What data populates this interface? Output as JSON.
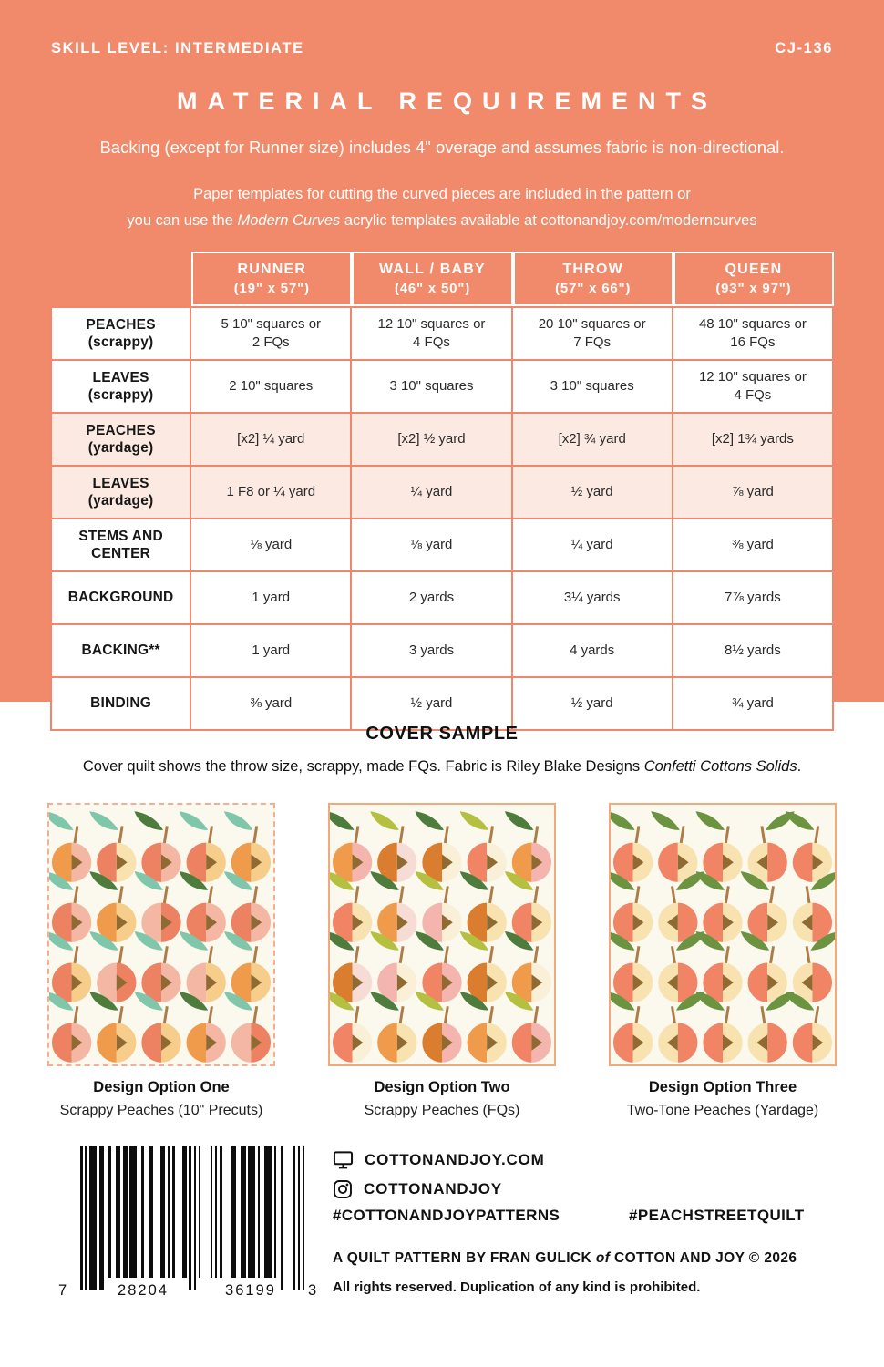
{
  "colors": {
    "accent": "#F18A6B",
    "tborder": "#F0876B",
    "shaded": "#FBE9E2",
    "panelBg": "#FBF8EE"
  },
  "header": {
    "skill_level": "SKILL LEVEL: INTERMEDIATE",
    "pattern_number": "CJ-136",
    "title": "MATERIAL REQUIREMENTS",
    "note1": "Backing (except for Runner size) includes 4\" overage and assumes fabric is non-directional.",
    "note2_line1": "Paper templates for cutting the curved pieces are included in the pattern or",
    "note2_pre": "you can use the ",
    "note2_italic": "Modern Curves",
    "note2_post": " acrylic templates available at cottonandjoy.com/moderncurves"
  },
  "table": {
    "columns": [
      {
        "name": "RUNNER",
        "dims": "(19\" x 57\")"
      },
      {
        "name": "WALL / BABY",
        "dims": "(46\" x 50\")"
      },
      {
        "name": "THROW",
        "dims": "(57\" x 66\")"
      },
      {
        "name": "QUEEN",
        "dims": "(93\" x 97\")"
      }
    ],
    "rows": [
      {
        "label": "PEACHES",
        "sub": "(scrappy)",
        "shaded": false,
        "values": [
          "5 10\" squares or\n2 FQs",
          "12 10\" squares or\n4 FQs",
          "20 10\" squares or\n7 FQs",
          "48 10\" squares or\n16 FQs"
        ]
      },
      {
        "label": "LEAVES",
        "sub": "(scrappy)",
        "shaded": false,
        "values": [
          "2 10\" squares",
          "3 10\" squares",
          "3 10\" squares",
          "12 10\" squares or\n4 FQs"
        ]
      },
      {
        "label": "PEACHES",
        "sub": "(yardage)",
        "shaded": true,
        "values": [
          "[x2] ¼ yard",
          "[x2] ½ yard",
          "[x2] ¾ yard",
          "[x2] 1¾ yards"
        ]
      },
      {
        "label": "LEAVES",
        "sub": "(yardage)",
        "shaded": true,
        "values": [
          "1 F8 or ¼ yard",
          "¼ yard",
          "½ yard",
          "⅞ yard"
        ]
      },
      {
        "label": "STEMS AND CENTER",
        "sub": "",
        "shaded": false,
        "values": [
          "⅛ yard",
          "⅛ yard",
          "¼ yard",
          "⅜ yard"
        ]
      },
      {
        "label": "BACKGROUND",
        "sub": "",
        "shaded": false,
        "values": [
          "1 yard",
          "2 yards",
          "3¼ yards",
          "7⅞ yards"
        ]
      },
      {
        "label": "BACKING**",
        "sub": "",
        "shaded": false,
        "values": [
          "1 yard",
          "3 yards",
          "4 yards",
          "8½ yards"
        ]
      },
      {
        "label": "BINDING",
        "sub": "",
        "shaded": false,
        "values": [
          "⅜ yard",
          "½ yard",
          "½ yard",
          "¾ yard"
        ]
      }
    ]
  },
  "cover_sample": {
    "title": "COVER SAMPLE",
    "desc_pre": "Cover quilt shows the throw size, scrappy, made FQs. Fabric is Riley Blake Designs ",
    "desc_italic": "Confetti Cottons Solids",
    "desc_post": "."
  },
  "palette": {
    "or": "#F09B4B",
    "do": "#DB7D2F",
    "sa": "#F08465",
    "rg": "#ED8262",
    "pk": "#F4B7A3",
    "pp": "#F3B5AE",
    "lp": "#F7DCD6",
    "yl": "#F6CD8B",
    "cr": "#F8E3B0",
    "pc": "#FAF0D8",
    "tl": "#7FC6AB",
    "dg": "#4E7C3C",
    "yg": "#B5BF40",
    "gr": "#6B9340",
    "stem": "#AC7D46",
    "seed": "#8F6B33"
  },
  "design_options": [
    {
      "title": "Design Option One",
      "subtitle": "Scrappy Peaches (10\" Precuts)",
      "peaches": [
        [
          "or",
          "pk",
          "tl"
        ],
        [
          "rg",
          "cr",
          "tl"
        ],
        [
          "rg",
          "pk",
          "dg"
        ],
        [
          "rg",
          "yl",
          "tl"
        ],
        [
          "or",
          "yl",
          "tl"
        ],
        [
          "rg",
          "pk",
          "tl"
        ],
        [
          "or",
          "yl",
          "dg"
        ],
        [
          "pk",
          "rg",
          "tl"
        ],
        [
          "rg",
          "pk",
          "dg"
        ],
        [
          "rg",
          "pk",
          "tl"
        ],
        [
          "rg",
          "yl",
          "tl"
        ],
        [
          "pk",
          "rg",
          "tl"
        ],
        [
          "rg",
          "pk",
          "tl"
        ],
        [
          "pk",
          "yl",
          "tl"
        ],
        [
          "or",
          "yl",
          "tl"
        ],
        [
          "rg",
          "pk",
          "tl"
        ],
        [
          "or",
          "yl",
          "dg"
        ],
        [
          "rg",
          "yl",
          "tl"
        ],
        [
          "or",
          "pk",
          "dg"
        ],
        [
          "pk",
          "rg",
          "tl"
        ]
      ]
    },
    {
      "title": "Design Option Two",
      "subtitle": "Scrappy Peaches (FQs)",
      "peaches": [
        [
          "or",
          "pp",
          "dg"
        ],
        [
          "do",
          "lp",
          "yg"
        ],
        [
          "do",
          "pc",
          "dg"
        ],
        [
          "sa",
          "pc",
          "yg"
        ],
        [
          "or",
          "pp",
          "dg"
        ],
        [
          "sa",
          "cr",
          "yg"
        ],
        [
          "or",
          "lp",
          "dg"
        ],
        [
          "pp",
          "pc",
          "yg"
        ],
        [
          "do",
          "cr",
          "dg"
        ],
        [
          "sa",
          "cr",
          "yg"
        ],
        [
          "do",
          "lp",
          "dg"
        ],
        [
          "pp",
          "pc",
          "yg"
        ],
        [
          "sa",
          "pp",
          "dg"
        ],
        [
          "do",
          "cr",
          "yg"
        ],
        [
          "or",
          "pc",
          "dg"
        ],
        [
          "sa",
          "pc",
          "yg"
        ],
        [
          "or",
          "cr",
          "dg"
        ],
        [
          "do",
          "pp",
          "yg"
        ],
        [
          "or",
          "cr",
          "dg"
        ],
        [
          "sa",
          "pp",
          "yg"
        ]
      ]
    },
    {
      "title": "Design Option Three",
      "subtitle": "Two-Tone Peaches (Yardage)",
      "peaches": [
        [
          "sa",
          "cr",
          "gr"
        ],
        [
          "sa",
          "cr",
          "gr"
        ],
        [
          "sa",
          "cr",
          "gr"
        ],
        [
          "sa",
          "cr",
          "gr",
          1
        ],
        [
          "sa",
          "cr",
          "gr"
        ],
        [
          "sa",
          "cr",
          "gr"
        ],
        [
          "sa",
          "cr",
          "gr",
          1
        ],
        [
          "sa",
          "cr",
          "gr"
        ],
        [
          "sa",
          "cr",
          "gr"
        ],
        [
          "sa",
          "cr",
          "gr",
          1
        ],
        [
          "sa",
          "cr",
          "gr"
        ],
        [
          "sa",
          "cr",
          "gr",
          1
        ],
        [
          "sa",
          "cr",
          "gr"
        ],
        [
          "sa",
          "cr",
          "gr"
        ],
        [
          "sa",
          "cr",
          "gr",
          1
        ],
        [
          "sa",
          "cr",
          "gr"
        ],
        [
          "sa",
          "cr",
          "gr",
          1
        ],
        [
          "sa",
          "cr",
          "gr"
        ],
        [
          "sa",
          "cr",
          "gr",
          1
        ],
        [
          "sa",
          "cr",
          "gr"
        ]
      ]
    }
  ],
  "barcode": {
    "pattern": "1010111011001001101101110010011000110101000110101010000101010000110011011101001110100100001 0101",
    "digits": [
      "7",
      "28204",
      "36199",
      "3"
    ]
  },
  "footer": {
    "website": "COTTONANDJOY.COM",
    "instagram": "COTTONANDJOY",
    "hashtags": [
      "#COTTONANDJOYPATTERNS",
      "#PEACHSTREETQUILT"
    ],
    "credit_pre": "A QUILT PATTERN BY FRAN GULICK",
    "credit_of": "of",
    "credit_post": "COTTON AND JOY © 2026",
    "rights": "All rights reserved. Duplication of any kind is prohibited."
  }
}
